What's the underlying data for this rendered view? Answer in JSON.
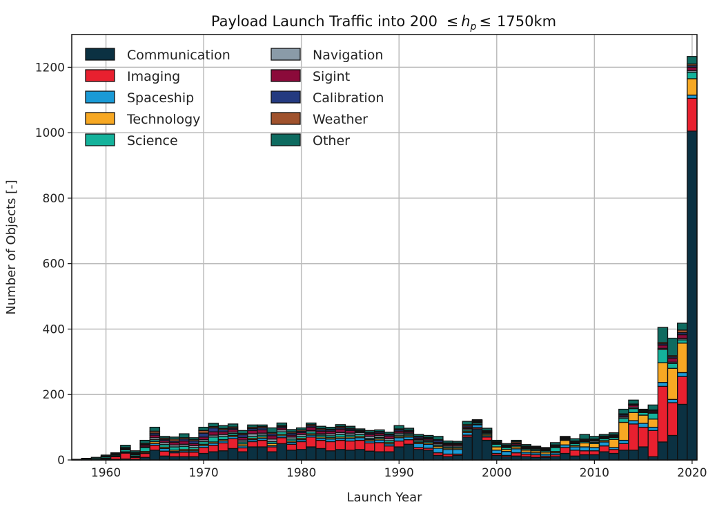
{
  "chart_data": {
    "type": "bar",
    "stacked": true,
    "title": {
      "prefix": "Payload Launch Traffic into 200 ",
      "leq1": "≤",
      "h": "h",
      "sub": "p",
      "leq2": "≤",
      "suffix": "1750km"
    },
    "xlabel": "Launch Year",
    "ylabel": "Number of Objects [-]",
    "xlim": [
      1956.5,
      2020.5
    ],
    "ylim": [
      0,
      1300
    ],
    "xticks": [
      1960,
      1970,
      1980,
      1990,
      2000,
      2010,
      2020
    ],
    "yticks": [
      0,
      200,
      400,
      600,
      800,
      1000,
      1200
    ],
    "grid": true,
    "legend_placement": "top-left",
    "years": [
      1957,
      1958,
      1959,
      1960,
      1961,
      1962,
      1963,
      1964,
      1965,
      1966,
      1967,
      1968,
      1969,
      1970,
      1971,
      1972,
      1973,
      1974,
      1975,
      1976,
      1977,
      1978,
      1979,
      1980,
      1981,
      1982,
      1983,
      1984,
      1985,
      1986,
      1987,
      1988,
      1989,
      1990,
      1991,
      1992,
      1993,
      1994,
      1995,
      1996,
      1997,
      1998,
      1999,
      2000,
      2001,
      2002,
      2003,
      2004,
      2005,
      2006,
      2007,
      2008,
      2009,
      2010,
      2011,
      2012,
      2013,
      2014,
      2015,
      2016,
      2017,
      2018,
      2019,
      2020
    ],
    "series": [
      {
        "name": "Communication",
        "color": "#0b3142",
        "values": [
          0,
          0,
          0,
          1,
          2,
          3,
          2,
          8,
          30,
          12,
          10,
          10,
          10,
          20,
          25,
          28,
          35,
          25,
          40,
          40,
          25,
          50,
          30,
          32,
          40,
          35,
          28,
          32,
          30,
          32,
          27,
          25,
          25,
          40,
          48,
          32,
          30,
          14,
          10,
          14,
          70,
          95,
          60,
          14,
          10,
          12,
          10,
          8,
          8,
          10,
          20,
          12,
          16,
          16,
          25,
          20,
          30,
          30,
          40,
          10,
          55,
          75,
          170,
          1005
        ]
      },
      {
        "name": "Imaging",
        "color": "#e8202f",
        "values": [
          0,
          0,
          0,
          2,
          8,
          18,
          6,
          12,
          15,
          15,
          12,
          14,
          14,
          18,
          20,
          24,
          30,
          12,
          16,
          20,
          15,
          18,
          18,
          24,
          30,
          25,
          28,
          28,
          28,
          28,
          25,
          28,
          18,
          18,
          14,
          6,
          6,
          8,
          8,
          4,
          6,
          4,
          10,
          6,
          4,
          10,
          8,
          8,
          4,
          6,
          18,
          18,
          12,
          12,
          18,
          12,
          20,
          80,
          60,
          80,
          170,
          100,
          85,
          100
        ]
      },
      {
        "name": "Spaceship",
        "color": "#1a9ad6",
        "values": [
          0,
          0,
          0,
          0,
          0,
          2,
          2,
          2,
          5,
          8,
          4,
          4,
          4,
          6,
          6,
          6,
          6,
          6,
          6,
          6,
          4,
          6,
          6,
          6,
          6,
          6,
          8,
          6,
          8,
          8,
          6,
          8,
          6,
          10,
          8,
          12,
          12,
          14,
          14,
          14,
          8,
          8,
          4,
          10,
          12,
          12,
          6,
          6,
          6,
          6,
          8,
          10,
          12,
          10,
          12,
          6,
          10,
          10,
          12,
          10,
          12,
          10,
          12,
          10
        ]
      },
      {
        "name": "Technology",
        "color": "#f7a823",
        "values": [
          0,
          0,
          1,
          2,
          2,
          2,
          2,
          4,
          6,
          4,
          4,
          4,
          4,
          4,
          4,
          4,
          4,
          6,
          4,
          4,
          6,
          4,
          4,
          4,
          4,
          4,
          4,
          4,
          4,
          4,
          4,
          4,
          4,
          4,
          4,
          4,
          4,
          6,
          4,
          4,
          4,
          2,
          4,
          10,
          6,
          6,
          6,
          6,
          6,
          4,
          14,
          4,
          12,
          12,
          4,
          25,
          55,
          25,
          25,
          25,
          60,
          95,
          90,
          50
        ]
      },
      {
        "name": "Science",
        "color": "#14b29b",
        "values": [
          1,
          3,
          4,
          4,
          3,
          6,
          4,
          12,
          6,
          8,
          10,
          10,
          6,
          8,
          15,
          10,
          6,
          6,
          6,
          6,
          6,
          8,
          6,
          6,
          6,
          6,
          6,
          8,
          6,
          6,
          4,
          4,
          6,
          4,
          4,
          4,
          4,
          4,
          4,
          4,
          4,
          4,
          4,
          8,
          6,
          4,
          4,
          4,
          4,
          12,
          2,
          6,
          4,
          4,
          6,
          6,
          12,
          12,
          8,
          18,
          40,
          15,
          10,
          20
        ]
      },
      {
        "name": "Navigation",
        "color": "#8a9ba8",
        "values": [
          0,
          0,
          0,
          1,
          1,
          2,
          2,
          2,
          6,
          6,
          6,
          6,
          6,
          6,
          6,
          6,
          4,
          6,
          8,
          6,
          8,
          6,
          6,
          6,
          4,
          4,
          6,
          6,
          6,
          6,
          6,
          6,
          6,
          6,
          4,
          4,
          4,
          4,
          4,
          4,
          4,
          2,
          2,
          2,
          2,
          2,
          2,
          2,
          2,
          2,
          2,
          2,
          2,
          4,
          2,
          2,
          4,
          4,
          2,
          2,
          4,
          4,
          4,
          5
        ]
      },
      {
        "name": "Sigint",
        "color": "#8b0a3a",
        "values": [
          0,
          0,
          0,
          1,
          2,
          2,
          2,
          5,
          8,
          6,
          8,
          10,
          6,
          8,
          10,
          8,
          8,
          8,
          10,
          10,
          10,
          6,
          6,
          6,
          10,
          8,
          8,
          10,
          8,
          3,
          6,
          6,
          8,
          6,
          4,
          4,
          4,
          4,
          4,
          4,
          4,
          2,
          2,
          2,
          2,
          4,
          2,
          2,
          2,
          2,
          2,
          2,
          2,
          2,
          2,
          2,
          4,
          6,
          2,
          4,
          10,
          12,
          12,
          10
        ]
      },
      {
        "name": "Calibration",
        "color": "#243a80",
        "values": [
          0,
          0,
          0,
          0,
          1,
          1,
          2,
          3,
          6,
          4,
          4,
          6,
          8,
          12,
          12,
          6,
          4,
          8,
          6,
          6,
          6,
          4,
          6,
          4,
          4,
          4,
          4,
          4,
          4,
          2,
          4,
          4,
          4,
          4,
          3,
          4,
          3,
          6,
          2,
          2,
          4,
          2,
          2,
          2,
          2,
          2,
          2,
          2,
          2,
          2,
          2,
          2,
          2,
          2,
          2,
          2,
          4,
          2,
          2,
          2,
          4,
          4,
          6,
          5
        ]
      },
      {
        "name": "Weather",
        "color": "#a0522d",
        "values": [
          0,
          0,
          0,
          1,
          1,
          2,
          1,
          3,
          6,
          4,
          6,
          4,
          4,
          8,
          4,
          4,
          4,
          4,
          4,
          4,
          4,
          3,
          4,
          4,
          4,
          4,
          2,
          4,
          3,
          2,
          2,
          2,
          2,
          3,
          2,
          2,
          2,
          2,
          2,
          2,
          4,
          2,
          2,
          2,
          2,
          4,
          2,
          2,
          2,
          2,
          2,
          2,
          2,
          2,
          2,
          2,
          2,
          2,
          2,
          2,
          4,
          4,
          8,
          5
        ]
      },
      {
        "name": "Other",
        "color": "#0e6b60",
        "values": [
          1,
          2,
          3,
          3,
          2,
          7,
          5,
          9,
          12,
          5,
          6,
          12,
          6,
          10,
          10,
          9,
          9,
          9,
          7,
          5,
          14,
          8,
          7,
          6,
          5,
          7,
          6,
          6,
          6,
          4,
          6,
          5,
          6,
          10,
          6,
          6,
          6,
          10,
          6,
          5,
          10,
          2,
          7,
          4,
          4,
          4,
          5,
          2,
          2,
          7,
          2,
          7,
          14,
          8,
          5,
          6,
          14,
          12,
          2,
          15,
          46,
          53,
          21,
          23
        ]
      }
    ]
  }
}
